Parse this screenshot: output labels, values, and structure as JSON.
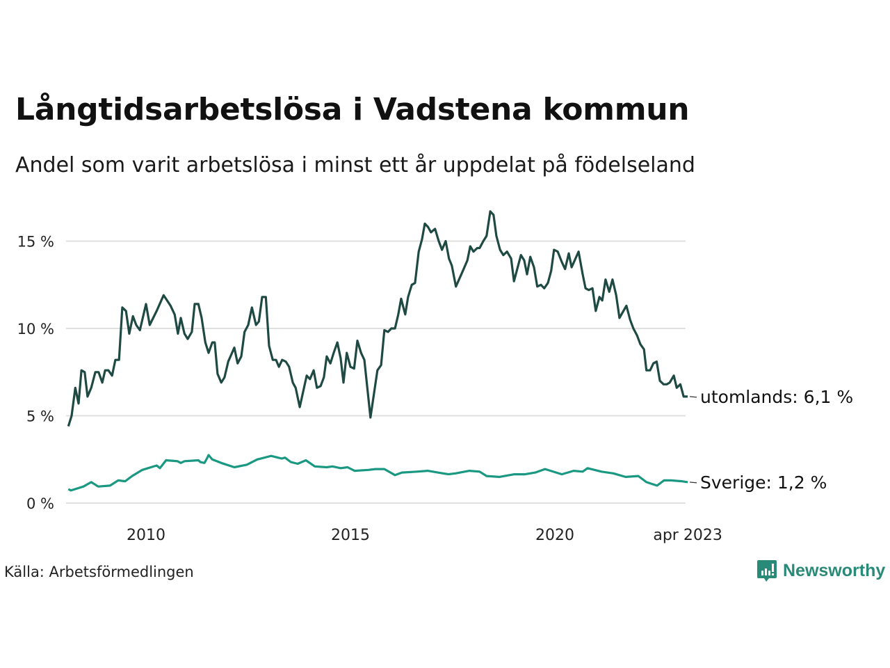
{
  "title": "Långtidsarbetslösa i Vadstena kommun",
  "subtitle": "Andel som varit arbetslösa i minst ett år uppdelat på födelseland",
  "source": "Källa: Arbetsförmedlingen",
  "logo": "Newsworthy",
  "colors": {
    "utomlands": "#1f4a43",
    "sverige": "#1a9882",
    "grid": "#e0e0e0",
    "brand": "#2a8a78"
  },
  "chart_data": {
    "type": "line",
    "title": "Långtidsarbetslösa i Vadstena kommun",
    "xlabel": "",
    "ylabel": "",
    "xlim": [
      2008.1,
      2023.25
    ],
    "ylim": [
      0,
      17
    ],
    "grid": true,
    "y_ticks": [
      {
        "v": 0,
        "label": "0 %"
      },
      {
        "v": 5,
        "label": "5 %"
      },
      {
        "v": 10,
        "label": "10 %"
      },
      {
        "v": 15,
        "label": "15 %"
      }
    ],
    "x_ticks": [
      {
        "v": 2010,
        "label": "2010"
      },
      {
        "v": 2015,
        "label": "2015"
      },
      {
        "v": 2020,
        "label": "2020"
      },
      {
        "v": 2023.25,
        "label": "apr 2023"
      }
    ],
    "series": [
      {
        "name": "utomlands",
        "label": "utomlands: 6,1 %",
        "color": "#1f4a43",
        "points": [
          [
            2008.1,
            4.4
          ],
          [
            2008.18,
            5.0
          ],
          [
            2008.27,
            6.6
          ],
          [
            2008.35,
            5.7
          ],
          [
            2008.42,
            7.6
          ],
          [
            2008.5,
            7.5
          ],
          [
            2008.57,
            6.1
          ],
          [
            2008.66,
            6.6
          ],
          [
            2008.76,
            7.5
          ],
          [
            2008.84,
            7.5
          ],
          [
            2008.93,
            6.9
          ],
          [
            2009.0,
            7.6
          ],
          [
            2009.08,
            7.6
          ],
          [
            2009.17,
            7.3
          ],
          [
            2009.25,
            8.2
          ],
          [
            2009.34,
            8.2
          ],
          [
            2009.42,
            11.2
          ],
          [
            2009.51,
            11.0
          ],
          [
            2009.59,
            9.7
          ],
          [
            2009.68,
            10.7
          ],
          [
            2009.76,
            10.2
          ],
          [
            2009.85,
            9.9
          ],
          [
            2010.0,
            11.4
          ],
          [
            2010.09,
            10.2
          ],
          [
            2010.26,
            11.0
          ],
          [
            2010.43,
            11.9
          ],
          [
            2010.6,
            11.3
          ],
          [
            2010.7,
            10.8
          ],
          [
            2010.78,
            9.7
          ],
          [
            2010.85,
            10.6
          ],
          [
            2010.94,
            9.7
          ],
          [
            2011.02,
            9.4
          ],
          [
            2011.12,
            9.8
          ],
          [
            2011.19,
            11.4
          ],
          [
            2011.28,
            11.4
          ],
          [
            2011.36,
            10.6
          ],
          [
            2011.45,
            9.2
          ],
          [
            2011.53,
            8.6
          ],
          [
            2011.62,
            9.2
          ],
          [
            2011.68,
            9.2
          ],
          [
            2011.75,
            7.4
          ],
          [
            2011.84,
            6.9
          ],
          [
            2011.92,
            7.2
          ],
          [
            2012.01,
            8.1
          ],
          [
            2012.16,
            8.9
          ],
          [
            2012.24,
            8.0
          ],
          [
            2012.33,
            8.4
          ],
          [
            2012.41,
            9.8
          ],
          [
            2012.5,
            10.2
          ],
          [
            2012.59,
            11.2
          ],
          [
            2012.69,
            10.2
          ],
          [
            2012.76,
            10.4
          ],
          [
            2012.84,
            11.8
          ],
          [
            2012.93,
            11.8
          ],
          [
            2013.01,
            9.0
          ],
          [
            2013.1,
            8.2
          ],
          [
            2013.18,
            8.2
          ],
          [
            2013.25,
            7.8
          ],
          [
            2013.33,
            8.2
          ],
          [
            2013.42,
            8.1
          ],
          [
            2013.5,
            7.8
          ],
          [
            2013.59,
            6.9
          ],
          [
            2013.66,
            6.6
          ],
          [
            2013.76,
            5.5
          ],
          [
            2013.93,
            7.3
          ],
          [
            2014.01,
            7.1
          ],
          [
            2014.1,
            7.6
          ],
          [
            2014.18,
            6.6
          ],
          [
            2014.27,
            6.7
          ],
          [
            2014.35,
            7.2
          ],
          [
            2014.42,
            8.4
          ],
          [
            2014.51,
            8.0
          ],
          [
            2014.59,
            8.6
          ],
          [
            2014.68,
            9.2
          ],
          [
            2014.76,
            8.3
          ],
          [
            2014.83,
            6.9
          ],
          [
            2014.91,
            8.6
          ],
          [
            2015.0,
            7.8
          ],
          [
            2015.09,
            7.7
          ],
          [
            2015.17,
            9.3
          ],
          [
            2015.26,
            8.6
          ],
          [
            2015.34,
            8.2
          ],
          [
            2015.49,
            4.9
          ],
          [
            2015.66,
            7.6
          ],
          [
            2015.75,
            7.9
          ],
          [
            2015.83,
            9.9
          ],
          [
            2015.92,
            9.8
          ],
          [
            2016.0,
            10.0
          ],
          [
            2016.09,
            10.0
          ],
          [
            2016.17,
            10.8
          ],
          [
            2016.24,
            11.7
          ],
          [
            2016.34,
            10.8
          ],
          [
            2016.41,
            11.8
          ],
          [
            2016.5,
            12.5
          ],
          [
            2016.58,
            12.6
          ],
          [
            2016.67,
            14.4
          ],
          [
            2016.75,
            15.1
          ],
          [
            2016.82,
            16.0
          ],
          [
            2016.9,
            15.8
          ],
          [
            2016.97,
            15.5
          ],
          [
            2017.07,
            15.7
          ],
          [
            2017.16,
            15.0
          ],
          [
            2017.24,
            14.5
          ],
          [
            2017.33,
            15.0
          ],
          [
            2017.41,
            14.0
          ],
          [
            2017.48,
            13.6
          ],
          [
            2017.58,
            12.4
          ],
          [
            2017.75,
            13.3
          ],
          [
            2017.86,
            13.9
          ],
          [
            2017.93,
            14.7
          ],
          [
            2018.01,
            14.4
          ],
          [
            2018.1,
            14.6
          ],
          [
            2018.16,
            14.6
          ],
          [
            2018.25,
            15.0
          ],
          [
            2018.33,
            15.3
          ],
          [
            2018.42,
            16.7
          ],
          [
            2018.5,
            16.5
          ],
          [
            2018.57,
            15.3
          ],
          [
            2018.66,
            14.5
          ],
          [
            2018.74,
            14.2
          ],
          [
            2018.83,
            14.4
          ],
          [
            2018.93,
            14.0
          ],
          [
            2019.0,
            12.7
          ],
          [
            2019.17,
            14.2
          ],
          [
            2019.25,
            13.9
          ],
          [
            2019.32,
            13.1
          ],
          [
            2019.4,
            14.1
          ],
          [
            2019.49,
            13.5
          ],
          [
            2019.57,
            12.4
          ],
          [
            2019.66,
            12.5
          ],
          [
            2019.74,
            12.3
          ],
          [
            2019.83,
            12.6
          ],
          [
            2019.91,
            13.3
          ],
          [
            2019.98,
            14.5
          ],
          [
            2020.07,
            14.4
          ],
          [
            2020.17,
            13.8
          ],
          [
            2020.25,
            13.4
          ],
          [
            2020.34,
            14.3
          ],
          [
            2020.41,
            13.5
          ],
          [
            2020.58,
            14.4
          ],
          [
            2020.68,
            13.1
          ],
          [
            2020.75,
            12.3
          ],
          [
            2020.83,
            12.2
          ],
          [
            2020.92,
            12.3
          ],
          [
            2021.0,
            11.0
          ],
          [
            2021.09,
            11.8
          ],
          [
            2021.16,
            11.6
          ],
          [
            2021.24,
            12.8
          ],
          [
            2021.33,
            12.1
          ],
          [
            2021.41,
            12.8
          ],
          [
            2021.5,
            11.9
          ],
          [
            2021.58,
            10.6
          ],
          [
            2021.75,
            11.3
          ],
          [
            2021.84,
            10.5
          ],
          [
            2021.92,
            10.0
          ],
          [
            2022.01,
            9.6
          ],
          [
            2022.09,
            9.1
          ],
          [
            2022.18,
            8.8
          ],
          [
            2022.24,
            7.6
          ],
          [
            2022.33,
            7.6
          ],
          [
            2022.41,
            8.0
          ],
          [
            2022.49,
            8.1
          ],
          [
            2022.57,
            7.0
          ],
          [
            2022.66,
            6.8
          ],
          [
            2022.74,
            6.8
          ],
          [
            2022.81,
            6.9
          ],
          [
            2022.91,
            7.3
          ],
          [
            2022.98,
            6.6
          ],
          [
            2023.07,
            6.8
          ],
          [
            2023.15,
            6.1
          ],
          [
            2023.25,
            6.1
          ]
        ]
      },
      {
        "name": "sverige",
        "label": "Sverige: 1,2 %",
        "color": "#1a9882",
        "points": [
          [
            2008.1,
            0.8
          ],
          [
            2008.16,
            0.72
          ],
          [
            2008.47,
            0.95
          ],
          [
            2008.66,
            1.2
          ],
          [
            2008.83,
            0.95
          ],
          [
            2009.12,
            1.0
          ],
          [
            2009.32,
            1.3
          ],
          [
            2009.49,
            1.25
          ],
          [
            2009.66,
            1.55
          ],
          [
            2009.91,
            1.9
          ],
          [
            2010.26,
            2.15
          ],
          [
            2010.34,
            2.0
          ],
          [
            2010.49,
            2.45
          ],
          [
            2010.77,
            2.4
          ],
          [
            2010.85,
            2.3
          ],
          [
            2010.94,
            2.4
          ],
          [
            2011.28,
            2.45
          ],
          [
            2011.33,
            2.35
          ],
          [
            2011.43,
            2.3
          ],
          [
            2011.5,
            2.6
          ],
          [
            2011.53,
            2.75
          ],
          [
            2011.62,
            2.5
          ],
          [
            2011.84,
            2.3
          ],
          [
            2012.16,
            2.05
          ],
          [
            2012.47,
            2.2
          ],
          [
            2012.72,
            2.5
          ],
          [
            2013.06,
            2.7
          ],
          [
            2013.23,
            2.6
          ],
          [
            2013.32,
            2.55
          ],
          [
            2013.4,
            2.6
          ],
          [
            2013.54,
            2.35
          ],
          [
            2013.71,
            2.25
          ],
          [
            2013.91,
            2.45
          ],
          [
            2014.13,
            2.1
          ],
          [
            2014.42,
            2.05
          ],
          [
            2014.56,
            2.1
          ],
          [
            2014.76,
            2.0
          ],
          [
            2014.93,
            2.05
          ],
          [
            2015.1,
            1.85
          ],
          [
            2015.44,
            1.9
          ],
          [
            2015.61,
            1.95
          ],
          [
            2015.83,
            1.95
          ],
          [
            2016.09,
            1.6
          ],
          [
            2016.26,
            1.75
          ],
          [
            2016.63,
            1.8
          ],
          [
            2016.89,
            1.85
          ],
          [
            2017.14,
            1.75
          ],
          [
            2017.4,
            1.65
          ],
          [
            2017.57,
            1.7
          ],
          [
            2017.91,
            1.85
          ],
          [
            2018.16,
            1.8
          ],
          [
            2018.33,
            1.55
          ],
          [
            2018.64,
            1.5
          ],
          [
            2019.01,
            1.65
          ],
          [
            2019.27,
            1.65
          ],
          [
            2019.52,
            1.75
          ],
          [
            2019.76,
            1.95
          ],
          [
            2020.17,
            1.65
          ],
          [
            2020.46,
            1.85
          ],
          [
            2020.68,
            1.8
          ],
          [
            2020.8,
            2.0
          ],
          [
            2021.14,
            1.8
          ],
          [
            2021.43,
            1.7
          ],
          [
            2021.73,
            1.5
          ],
          [
            2022.04,
            1.55
          ],
          [
            2022.24,
            1.2
          ],
          [
            2022.5,
            1.0
          ],
          [
            2022.67,
            1.3
          ],
          [
            2022.84,
            1.3
          ],
          [
            2023.1,
            1.25
          ],
          [
            2023.25,
            1.2
          ]
        ]
      }
    ]
  }
}
